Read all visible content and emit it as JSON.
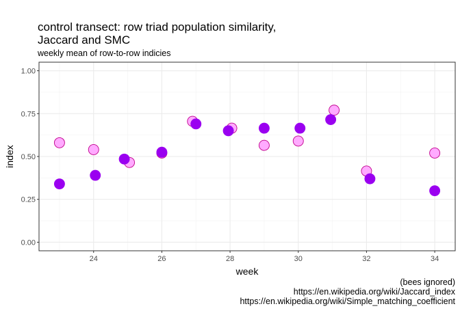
{
  "chart_data": {
    "type": "scatter",
    "title_lines": [
      "control transect: row triad population similarity,",
      "Jaccard and SMC"
    ],
    "subtitle": "weekly mean of row-to-row indicies",
    "xlabel": "week",
    "ylabel": "index",
    "xlim": [
      22.4,
      34.6
    ],
    "ylim": [
      -0.05,
      1.05
    ],
    "x_ticks": [
      24,
      26,
      28,
      30,
      32,
      34
    ],
    "y_ticks": [
      0.0,
      0.25,
      0.5,
      0.75,
      1.0
    ],
    "x_tick_labels": [
      "24",
      "26",
      "28",
      "30",
      "32",
      "34"
    ],
    "y_tick_labels": [
      "0.00",
      "0.25",
      "0.50",
      "0.75",
      "1.00"
    ],
    "grid": true,
    "legend": "none",
    "caption_lines": [
      "(bees ignored)",
      "https://en.wikipedia.org/wiki/Jaccard_index",
      "https://en.wikipedia.org/wiki/Simple_matching_coefficient"
    ],
    "series": [
      {
        "color": "#ffaaff",
        "stroke": "#c0008c",
        "x": [
          23.0,
          24.0,
          25.05,
          26.0,
          26.9,
          28.05,
          29.0,
          30.0,
          31.05,
          32.0,
          34.0
        ],
        "y": [
          0.58,
          0.54,
          0.465,
          0.52,
          0.705,
          0.665,
          0.565,
          0.59,
          0.77,
          0.415,
          0.52
        ]
      },
      {
        "color": "#9a00f0",
        "stroke": "#9a00f0",
        "x": [
          23.0,
          24.05,
          24.9,
          26.0,
          27.0,
          27.95,
          29.0,
          30.05,
          30.95,
          32.1,
          34.0
        ],
        "y": [
          0.34,
          0.39,
          0.485,
          0.525,
          0.69,
          0.65,
          0.665,
          0.665,
          0.715,
          0.37,
          0.3
        ]
      }
    ]
  }
}
